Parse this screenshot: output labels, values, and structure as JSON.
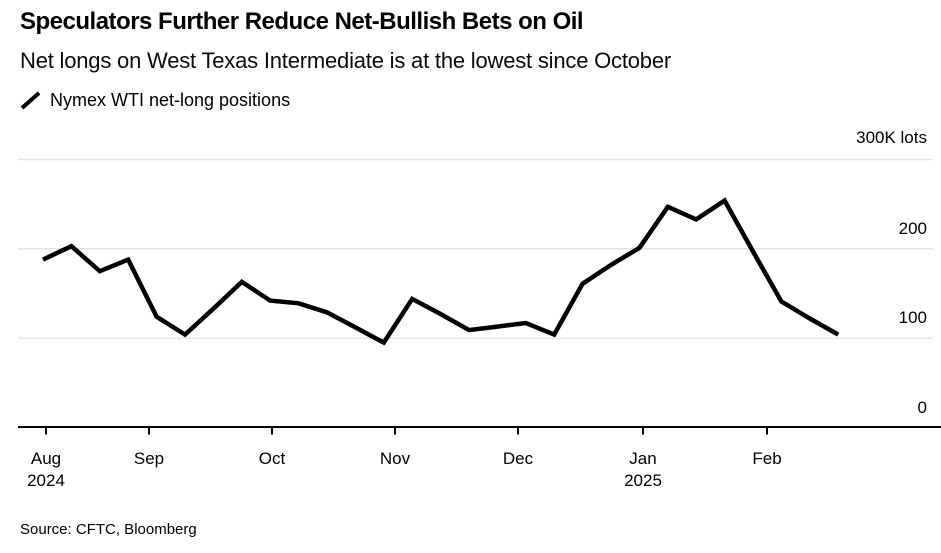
{
  "header": {
    "title": "Speculators Further Reduce Net-Bullish Bets on Oil",
    "subtitle": "Net longs on West Texas Intermediate is at the lowest since October"
  },
  "legend": {
    "series_label": "Nymex WTI net-long positions",
    "swatch": "black-diagonal-line"
  },
  "chart_data": {
    "type": "line",
    "title": "Nymex WTI net-long positions",
    "xlabel": "",
    "ylabel": "K lots",
    "ylim": [
      0,
      300
    ],
    "grid": "horizontal",
    "legend_position": "top-left",
    "colors": {
      "line": "#000000",
      "axis": "#000000",
      "gridline": "#e4e4e4",
      "text": "#000000"
    },
    "y_axis": {
      "labels": [
        "300K lots",
        "200",
        "100",
        "0"
      ],
      "gridline_values": [
        300,
        200,
        100
      ],
      "baseline_value": 0
    },
    "x_axis": {
      "tick_labels": [
        {
          "month": "Aug",
          "year": "2024"
        },
        {
          "month": "Sep"
        },
        {
          "month": "Oct"
        },
        {
          "month": "Nov"
        },
        {
          "month": "Dec"
        },
        {
          "month": "Jan",
          "year": "2025"
        },
        {
          "month": "Feb"
        }
      ]
    },
    "x": [
      "2024-08-06",
      "2024-08-13",
      "2024-08-20",
      "2024-08-27",
      "2024-09-03",
      "2024-09-10",
      "2024-09-17",
      "2024-09-24",
      "2024-10-01",
      "2024-10-08",
      "2024-10-15",
      "2024-10-22",
      "2024-10-29",
      "2024-11-05",
      "2024-11-12",
      "2024-11-19",
      "2024-11-26",
      "2024-12-03",
      "2024-12-10",
      "2024-12-17",
      "2024-12-24",
      "2024-12-31",
      "2025-01-07",
      "2025-01-14",
      "2025-01-21",
      "2025-01-28",
      "2025-02-04",
      "2025-02-11",
      "2025-02-18"
    ],
    "series": [
      {
        "name": "Nymex WTI net-long positions",
        "unit": "K lots",
        "values": [
          188,
          203,
          175,
          188,
          124,
          104,
          133,
          163,
          142,
          139,
          129,
          112,
          95,
          144,
          127,
          109,
          113,
          117,
          104,
          161,
          182,
          201,
          247,
          233,
          254,
          197,
          141,
          122,
          104
        ]
      }
    ]
  },
  "footer": {
    "source": "Source: CFTC, Bloomberg"
  }
}
